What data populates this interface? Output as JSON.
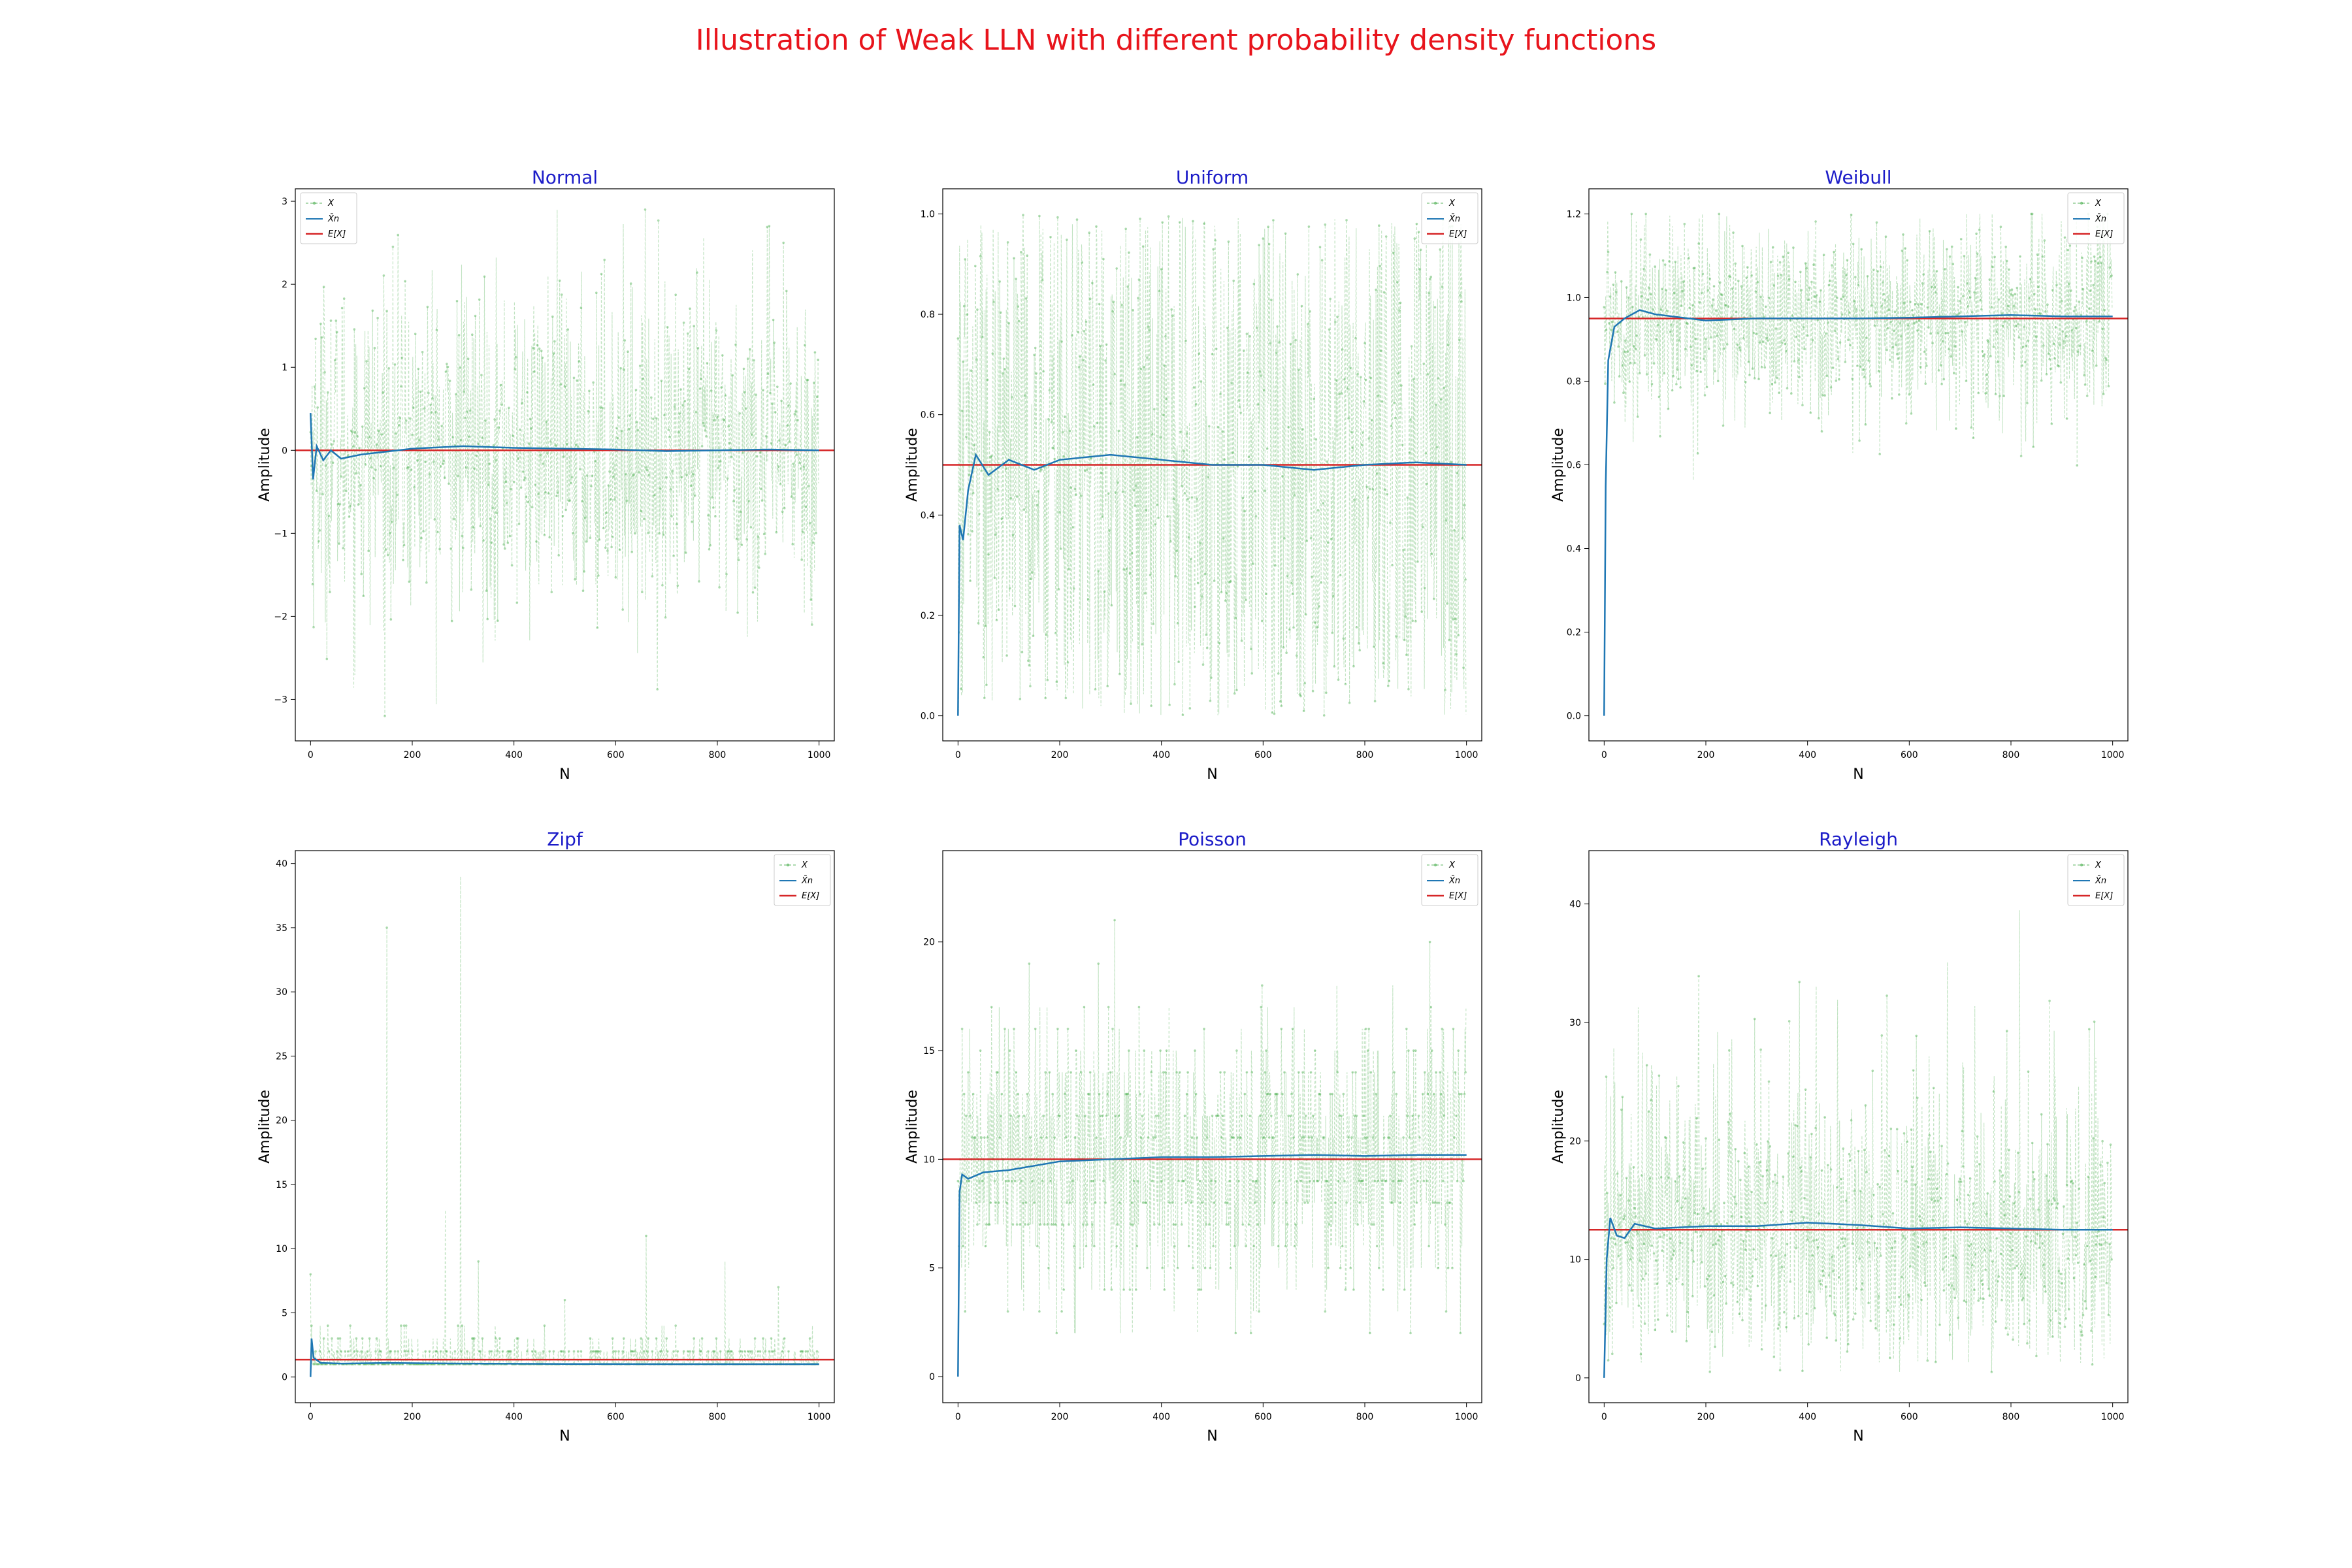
{
  "figure": {
    "title": "Illustration of Weak LLN with different probability density functions",
    "title_color": "#e8141c",
    "subtitle_color": "#1c1cc8"
  },
  "legend": {
    "x_label": "X",
    "xbar_label": "X̄n",
    "ex_label": "E[X]",
    "colors": {
      "x": "#4caf50",
      "xbar": "#1f77b4",
      "ex": "#d62728"
    }
  },
  "chart_data": [
    {
      "type": "line",
      "title": "Normal",
      "xlabel": "N",
      "ylabel": "Amplitude",
      "xlim": [
        -30,
        1030
      ],
      "ylim": [
        -3.5,
        3.15
      ],
      "xticks": [
        0,
        200,
        400,
        600,
        800,
        1000
      ],
      "yticks": [
        -3,
        -2,
        -1,
        0,
        1,
        2,
        3
      ],
      "ytick_labels": [
        "−3",
        "−2",
        "−1",
        "0",
        "1",
        "2",
        "3"
      ],
      "expected_value": 0,
      "running_mean": [
        [
          0,
          0.45
        ],
        [
          5,
          -0.35
        ],
        [
          12,
          0.05
        ],
        [
          25,
          -0.12
        ],
        [
          40,
          0.0
        ],
        [
          60,
          -0.1
        ],
        [
          100,
          -0.05
        ],
        [
          200,
          0.02
        ],
        [
          300,
          0.05
        ],
        [
          400,
          0.03
        ],
        [
          500,
          0.02
        ],
        [
          600,
          0.01
        ],
        [
          700,
          -0.01
        ],
        [
          800,
          0.0
        ],
        [
          900,
          0.01
        ],
        [
          1000,
          0.0
        ]
      ],
      "samples": {
        "n": 1000,
        "center": 0,
        "spread": 1.0,
        "min": -3.2,
        "max": 2.9,
        "dist": "normal"
      }
    },
    {
      "type": "line",
      "title": "Uniform",
      "xlabel": "N",
      "ylabel": "Amplitude",
      "xlim": [
        -30,
        1030
      ],
      "ylim": [
        -0.05,
        1.05
      ],
      "xticks": [
        0,
        200,
        400,
        600,
        800,
        1000
      ],
      "yticks": [
        0.0,
        0.2,
        0.4,
        0.6,
        0.8,
        1.0
      ],
      "ytick_labels": [
        "0.0",
        "0.2",
        "0.4",
        "0.6",
        "0.8",
        "1.0"
      ],
      "expected_value": 0.5,
      "running_mean": [
        [
          0,
          0.0
        ],
        [
          3,
          0.38
        ],
        [
          10,
          0.35
        ],
        [
          20,
          0.45
        ],
        [
          35,
          0.52
        ],
        [
          60,
          0.48
        ],
        [
          100,
          0.51
        ],
        [
          150,
          0.49
        ],
        [
          200,
          0.51
        ],
        [
          300,
          0.52
        ],
        [
          400,
          0.51
        ],
        [
          500,
          0.5
        ],
        [
          600,
          0.5
        ],
        [
          700,
          0.49
        ],
        [
          800,
          0.5
        ],
        [
          900,
          0.505
        ],
        [
          1000,
          0.5
        ]
      ],
      "samples": {
        "n": 1000,
        "center": 0.5,
        "spread": 0.29,
        "min": 0.0,
        "max": 1.0,
        "dist": "uniform"
      }
    },
    {
      "type": "line",
      "title": "Weibull",
      "xlabel": "N",
      "ylabel": "Amplitude",
      "xlim": [
        -30,
        1030
      ],
      "ylim": [
        -0.06,
        1.26
      ],
      "xticks": [
        0,
        200,
        400,
        600,
        800,
        1000
      ],
      "yticks": [
        0.0,
        0.2,
        0.4,
        0.6,
        0.8,
        1.0,
        1.2
      ],
      "ytick_labels": [
        "0.0",
        "0.2",
        "0.4",
        "0.6",
        "0.8",
        "1.0",
        "1.2"
      ],
      "expected_value": 0.95,
      "running_mean": [
        [
          0,
          0.0
        ],
        [
          3,
          0.55
        ],
        [
          8,
          0.85
        ],
        [
          20,
          0.93
        ],
        [
          40,
          0.95
        ],
        [
          70,
          0.97
        ],
        [
          100,
          0.96
        ],
        [
          200,
          0.945
        ],
        [
          300,
          0.95
        ],
        [
          400,
          0.95
        ],
        [
          500,
          0.95
        ],
        [
          600,
          0.952
        ],
        [
          700,
          0.955
        ],
        [
          800,
          0.958
        ],
        [
          900,
          0.955
        ],
        [
          1000,
          0.955
        ]
      ],
      "samples": {
        "n": 1000,
        "center": 0.95,
        "spread": 0.12,
        "min": 0.55,
        "max": 1.2,
        "dist": "weibull"
      }
    },
    {
      "type": "line",
      "title": "Zipf",
      "xlabel": "N",
      "ylabel": "Amplitude",
      "xlim": [
        -30,
        1030
      ],
      "ylim": [
        -2,
        41
      ],
      "xticks": [
        0,
        200,
        400,
        600,
        800,
        1000
      ],
      "yticks": [
        0,
        5,
        10,
        15,
        20,
        25,
        30,
        35,
        40
      ],
      "ytick_labels": [
        "0",
        "5",
        "10",
        "15",
        "20",
        "25",
        "30",
        "35",
        "40"
      ],
      "expected_value": 1.35,
      "running_mean": [
        [
          0,
          0.0
        ],
        [
          2,
          3.0
        ],
        [
          6,
          1.5
        ],
        [
          20,
          1.1
        ],
        [
          60,
          1.05
        ],
        [
          150,
          1.1
        ],
        [
          300,
          1.05
        ],
        [
          500,
          1.02
        ],
        [
          700,
          1.0
        ],
        [
          1000,
          1.0
        ]
      ],
      "samples": {
        "n": 1000,
        "dist": "zipf",
        "spikes": [
          [
            0,
            8
          ],
          [
            150,
            35
          ],
          [
            265,
            13
          ],
          [
            295,
            39
          ],
          [
            330,
            9
          ],
          [
            500,
            6
          ],
          [
            660,
            11
          ],
          [
            815,
            9
          ],
          [
            920,
            7
          ]
        ]
      }
    },
    {
      "type": "line",
      "title": "Poisson",
      "xlabel": "N",
      "ylabel": "Amplitude",
      "xlim": [
        -30,
        1030
      ],
      "ylim": [
        -1.2,
        24.2
      ],
      "xticks": [
        0,
        200,
        400,
        600,
        800,
        1000
      ],
      "yticks": [
        0,
        5,
        10,
        15,
        20
      ],
      "ytick_labels": [
        "0",
        "5",
        "10",
        "15",
        "20"
      ],
      "expected_value": 10,
      "running_mean": [
        [
          0,
          0.0
        ],
        [
          3,
          8.5
        ],
        [
          8,
          9.3
        ],
        [
          20,
          9.1
        ],
        [
          50,
          9.4
        ],
        [
          100,
          9.5
        ],
        [
          200,
          9.9
        ],
        [
          300,
          10.0
        ],
        [
          400,
          10.1
        ],
        [
          500,
          10.1
        ],
        [
          600,
          10.15
        ],
        [
          700,
          10.2
        ],
        [
          800,
          10.15
        ],
        [
          900,
          10.2
        ],
        [
          1000,
          10.2
        ]
      ],
      "samples": {
        "n": 1000,
        "center": 10,
        "spread": 3.16,
        "min": 2,
        "max": 23,
        "dist": "poisson"
      }
    },
    {
      "type": "line",
      "title": "Rayleigh",
      "xlabel": "N",
      "ylabel": "Amplitude",
      "xlim": [
        -30,
        1030
      ],
      "ylim": [
        -2.1,
        44.5
      ],
      "xticks": [
        0,
        200,
        400,
        600,
        800,
        1000
      ],
      "yticks": [
        0,
        10,
        20,
        30,
        40
      ],
      "ytick_labels": [
        "0",
        "10",
        "20",
        "30",
        "40"
      ],
      "expected_value": 12.5,
      "running_mean": [
        [
          0,
          0.0
        ],
        [
          5,
          10.0
        ],
        [
          12,
          13.5
        ],
        [
          25,
          12.0
        ],
        [
          40,
          11.8
        ],
        [
          60,
          13.0
        ],
        [
          100,
          12.6
        ],
        [
          200,
          12.8
        ],
        [
          300,
          12.8
        ],
        [
          400,
          13.1
        ],
        [
          500,
          12.9
        ],
        [
          600,
          12.6
        ],
        [
          700,
          12.7
        ],
        [
          800,
          12.6
        ],
        [
          900,
          12.5
        ],
        [
          1000,
          12.5
        ]
      ],
      "samples": {
        "n": 1000,
        "center": 12.5,
        "spread": 6.5,
        "min": 0.5,
        "max": 42,
        "dist": "rayleigh"
      }
    }
  ]
}
